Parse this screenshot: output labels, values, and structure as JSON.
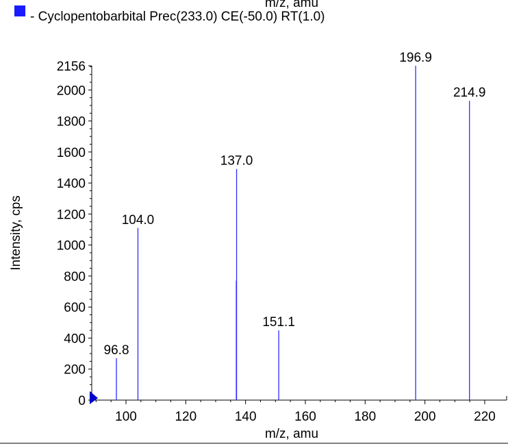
{
  "chart_data": {
    "type": "bar",
    "title": "",
    "top_cut_text": "m/z, amu",
    "legend": {
      "placement": "top-left",
      "entries": [
        {
          "label": "- Cyclopentobarbital Prec(233.0) CE(-50.0) RT(1.0)",
          "color": "#1a1aff"
        }
      ]
    },
    "xlabel": "m/z, amu",
    "ylabel": "Intensity, cps",
    "xlim": [
      85,
      224
    ],
    "ylim": [
      0,
      2156
    ],
    "x_ticks": [
      100,
      120,
      140,
      160,
      180,
      200,
      220
    ],
    "y_ticks": [
      0,
      200,
      400,
      600,
      800,
      1000,
      1200,
      1400,
      1600,
      1800,
      2000,
      2156
    ],
    "series": [
      {
        "name": "- Cyclopentobarbital Prec(233.0) CE(-50.0) RT(1.0)",
        "color": "#2b2bff",
        "peaks": [
          {
            "x": 96.8,
            "y": 270,
            "label": "96.8"
          },
          {
            "x": 104.0,
            "y": 1110,
            "label": "104.0"
          },
          {
            "x": 136.9,
            "y": 770,
            "label": ""
          },
          {
            "x": 137.0,
            "y": 1490,
            "label": "137.0"
          },
          {
            "x": 151.1,
            "y": 450,
            "label": "151.1"
          },
          {
            "x": 196.9,
            "y": 2156,
            "label": "196.9"
          },
          {
            "x": 214.9,
            "y": 1930,
            "label": "214.9"
          }
        ]
      }
    ],
    "marker_color": "#0000cc"
  }
}
